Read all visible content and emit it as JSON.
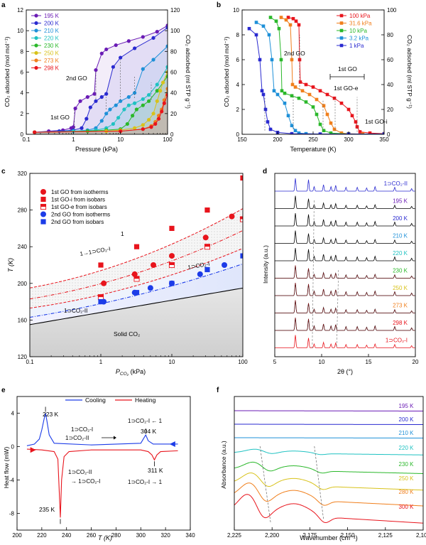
{
  "chart_data": [
    {
      "panel": "a",
      "type": "line",
      "xscale": "log",
      "xlim": [
        0.1,
        100
      ],
      "ylim": [
        0,
        12
      ],
      "y2lim": [
        0,
        120
      ],
      "xticks": [
        0.1,
        1,
        10,
        100
      ],
      "xticklabels": [
        "0.1",
        "1",
        "10",
        "100"
      ],
      "yticks": [
        0,
        2,
        4,
        6,
        8,
        10,
        12
      ],
      "y2ticks": [
        0,
        20,
        40,
        60,
        80,
        100,
        120
      ],
      "xlabel": "Pressure (kPa)",
      "ylabel": "CO₂ adsorbed (mol mol⁻¹)",
      "y2label": "CO₂ adsorbed (ml STP g⁻¹)",
      "legend_position": "top-left",
      "annotations": [
        "1st GO",
        "2nd GO"
      ],
      "series": [
        {
          "name": "195 K",
          "color": "#6a1bb5",
          "x": [
            0.15,
            0.3,
            0.6,
            0.9,
            1.0,
            1.1,
            1.4,
            2,
            2.8,
            3,
            4,
            5,
            8,
            15,
            30,
            60,
            100
          ],
          "y": [
            0.2,
            0.3,
            0.4,
            0.6,
            0.7,
            2.5,
            3.2,
            3.6,
            3.9,
            6.2,
            7.8,
            8.2,
            8.6,
            9.0,
            9.4,
            9.9,
            10.5
          ]
        },
        {
          "name": "200 K",
          "color": "#2a2ad0",
          "x": [
            0.15,
            0.5,
            1,
            1.5,
            1.9,
            2.3,
            3,
            4,
            5,
            7,
            10,
            20,
            50,
            100
          ],
          "y": [
            0.2,
            0.3,
            0.4,
            0.6,
            1.5,
            2.6,
            3.2,
            3.6,
            3.9,
            6.5,
            7.4,
            8.3,
            9.3,
            10.3
          ]
        },
        {
          "name": "210 K",
          "color": "#1e90d8",
          "x": [
            0.15,
            1,
            2,
            3,
            4,
            5,
            6,
            8,
            10,
            15,
            20,
            30,
            50,
            100
          ],
          "y": [
            0.2,
            0.3,
            0.4,
            0.6,
            1.3,
            2.0,
            2.4,
            2.8,
            3.2,
            3.6,
            4.0,
            6.3,
            7.2,
            8.5
          ]
        },
        {
          "name": "220 K",
          "color": "#1fc2c2",
          "x": [
            0.15,
            1,
            3,
            5,
            7,
            9,
            12,
            15,
            20,
            30,
            40,
            60,
            100
          ],
          "y": [
            0.2,
            0.3,
            0.4,
            0.6,
            1.0,
            1.6,
            2.4,
            2.8,
            3.0,
            3.4,
            3.8,
            4.8,
            6.5
          ]
        },
        {
          "name": "230 K",
          "color": "#2ab82a",
          "x": [
            0.15,
            2,
            5,
            10,
            14,
            18,
            22,
            30,
            40,
            60,
            100
          ],
          "y": [
            0.2,
            0.3,
            0.4,
            0.5,
            1.0,
            1.8,
            2.4,
            2.8,
            3.2,
            4.2,
            5.6
          ]
        },
        {
          "name": "250 K",
          "color": "#d8c21a",
          "x": [
            0.15,
            5,
            10,
            20,
            30,
            40,
            50,
            60,
            70,
            80,
            100
          ],
          "y": [
            0.2,
            0.3,
            0.4,
            0.6,
            0.9,
            1.4,
            2.0,
            3.2,
            4.2,
            5.0,
            6.0
          ]
        },
        {
          "name": "273 K",
          "color": "#f07f1c",
          "x": [
            0.15,
            10,
            30,
            45,
            55,
            65,
            75,
            85,
            100
          ],
          "y": [
            0.2,
            0.3,
            0.5,
            0.8,
            1.2,
            1.8,
            2.4,
            3.3,
            4.4
          ]
        },
        {
          "name": "298 K",
          "color": "#e8141c",
          "x": [
            0.15,
            10,
            30,
            45,
            55,
            65,
            75,
            85,
            100
          ],
          "y": [
            0.2,
            0.3,
            0.5,
            0.7,
            1.0,
            1.5,
            2.2,
            3.0,
            3.8
          ]
        }
      ]
    },
    {
      "panel": "b",
      "type": "line",
      "xlim": [
        150,
        350
      ],
      "ylim": [
        0,
        10
      ],
      "y2lim": [
        0,
        100
      ],
      "xticks": [
        150,
        200,
        250,
        300,
        350
      ],
      "yticks": [
        0,
        2,
        4,
        6,
        8,
        10
      ],
      "y2ticks": [
        0,
        20,
        40,
        60,
        80,
        100
      ],
      "xlabel": "Temperature (K)",
      "ylabel": "CO₂ adsorbed (mol mol⁻¹)",
      "y2label": "CO₂ adsorbed (ml STP g⁻¹)",
      "legend_position": "top-right",
      "annotations": [
        "2nd GO",
        "1st GO",
        "1st GO-e",
        "1st GO-i"
      ],
      "series": [
        {
          "name": "100 kPa",
          "color": "#e8141c",
          "x": [
            215,
            222,
            226,
            230,
            231,
            232,
            240,
            250,
            260,
            270,
            280,
            290,
            300,
            305,
            310,
            312,
            316,
            330,
            350
          ],
          "y": [
            9.4,
            9.3,
            9.1,
            8.8,
            6.0,
            4.2,
            4.0,
            3.8,
            3.5,
            3.2,
            2.9,
            2.5,
            2.0,
            1.5,
            1.0,
            0.6,
            0.2,
            0.1,
            0.05
          ]
        },
        {
          "name": "31.6 kPa",
          "color": "#f07f1c",
          "x": [
            205,
            212,
            218,
            220,
            221,
            225,
            235,
            245,
            255,
            265,
            270,
            275,
            280,
            290,
            300,
            320,
            350
          ],
          "y": [
            9.4,
            9.2,
            8.8,
            6.0,
            4.0,
            3.8,
            3.5,
            3.2,
            2.8,
            2.3,
            1.6,
            0.9,
            0.4,
            0.1,
            0.05,
            0.02,
            0.02
          ]
        },
        {
          "name": "10 kPa",
          "color": "#2ab82a",
          "x": [
            190,
            198,
            202,
            205,
            206,
            210,
            220,
            230,
            240,
            250,
            255,
            260,
            265,
            275,
            300,
            350
          ],
          "y": [
            9.4,
            9.1,
            8.5,
            6.0,
            3.5,
            3.3,
            3.1,
            2.9,
            2.6,
            2.2,
            1.6,
            0.8,
            0.3,
            0.1,
            0.03,
            0.02
          ]
        },
        {
          "name": "3.2 kPa",
          "color": "#1e90d8",
          "x": [
            170,
            180,
            188,
            192,
            195,
            200,
            210,
            215,
            220,
            225,
            230,
            240,
            260,
            300,
            350
          ],
          "y": [
            9.0,
            8.7,
            8.0,
            6.0,
            3.5,
            3.2,
            2.5,
            1.5,
            0.7,
            0.3,
            0.1,
            0.05,
            0.02,
            0.02,
            0.02
          ]
        },
        {
          "name": "1 kPa",
          "color": "#2a2ad0",
          "x": [
            160,
            170,
            175,
            178,
            180,
            183,
            186,
            190,
            200,
            220,
            260,
            300,
            350
          ],
          "y": [
            8.5,
            8.0,
            6.0,
            3.5,
            3.2,
            2.0,
            1.0,
            0.4,
            0.15,
            0.05,
            0.02,
            0.02,
            0.02
          ]
        }
      ]
    },
    {
      "panel": "c",
      "type": "scatter",
      "xscale": "log",
      "xlim": [
        0.1,
        100
      ],
      "ylim": [
        120,
        320
      ],
      "xticks": [
        0.1,
        1,
        10,
        100
      ],
      "xticklabels": [
        "0.1",
        "1",
        "10",
        "100"
      ],
      "yticks": [
        120,
        160,
        200,
        240,
        280,
        320
      ],
      "xlabel": "P",
      "xlabel_sub": "CO₂",
      "xlabel_unit": " (kPa)",
      "ylabel": "T (K)",
      "legend_position": "top-left",
      "regions": [
        "1",
        "1→1⊃CO₂-I",
        "1⊃CO₂-I",
        "1⊃CO₂-II",
        "Solid CO₂"
      ],
      "series": [
        {
          "name": "1st GO from isotherms",
          "marker": "circle",
          "color": "#e8141c",
          "x": [
            1.1,
            3.0,
            5.5,
            10,
            30,
            70
          ],
          "y": [
            200,
            210,
            220,
            230,
            250,
            273
          ]
        },
        {
          "name": "1st GO-i from isobars",
          "marker": "square",
          "color": "#e8141c",
          "x": [
            1,
            3.2,
            10,
            31.6,
            100
          ],
          "y": [
            220,
            240,
            260,
            280,
            315
          ]
        },
        {
          "name": "1st GO-e from isobars",
          "marker": "half-square",
          "color": "#e8141c",
          "x": [
            1,
            3.2,
            10,
            31.6,
            100
          ],
          "y": [
            185,
            205,
            220,
            240,
            270
          ]
        },
        {
          "name": "2nd GO from isotherms",
          "marker": "circle",
          "color": "#1c3ce8",
          "x": [
            1.1,
            3.0,
            5.0,
            10,
            25,
            55
          ],
          "y": [
            180,
            190,
            195,
            200,
            210,
            220
          ]
        },
        {
          "name": "2nd GO from isobars",
          "marker": "square",
          "color": "#1c3ce8",
          "x": [
            1,
            3.2,
            10,
            31.6,
            100
          ],
          "y": [
            180,
            190,
            200,
            215,
            230
          ]
        }
      ]
    },
    {
      "panel": "d",
      "type": "line",
      "xlim": [
        5,
        20
      ],
      "xticks": [
        5,
        10,
        15,
        20
      ],
      "xlabel": "2θ (°)",
      "ylabel": "Intensity (a.u.)",
      "trace_labels": [
        {
          "name": "1⊃CO₂-II",
          "color": "#2a2ad0"
        },
        {
          "name": "195 K",
          "color": "#6a1bb5"
        },
        {
          "name": "200 K",
          "color": "#2a2ad0"
        },
        {
          "name": "210 K",
          "color": "#1e90d8"
        },
        {
          "name": "220 K",
          "color": "#1fc2c2"
        },
        {
          "name": "230 K",
          "color": "#2ab82a"
        },
        {
          "name": "250 K",
          "color": "#d8c21a"
        },
        {
          "name": "273 K",
          "color": "#f07f1c"
        },
        {
          "name": "298 K",
          "color": "#e8141c"
        },
        {
          "name": "1⊃CO₂-I",
          "color": "#e8141c"
        }
      ],
      "peak_positions": [
        7.2,
        8.6,
        9.2,
        10.2,
        11.0,
        11.5,
        12.6,
        13.8,
        14.8,
        15.7,
        17.8,
        19.6
      ]
    },
    {
      "panel": "e",
      "type": "line",
      "xlim": [
        200,
        340
      ],
      "ylim": [
        -10,
        6
      ],
      "xticks": [
        200,
        220,
        240,
        260,
        280,
        300,
        320,
        340
      ],
      "yticks": [
        -8,
        -4,
        0,
        4
      ],
      "xlabel": "T (K)",
      "ylabel": "Heat flow (mW)",
      "legend_position": "top",
      "annotations": [
        "223 K",
        "235 K",
        "304 K",
        "311 K",
        "1⊃CO₂-I",
        "1⊃CO₂-II",
        "1⊃CO₂-I ← 1",
        "1⊃CO₂-II",
        "→ 1⊃CO₂-I",
        "1⊃CO₂-I → 1"
      ],
      "series": [
        {
          "name": "Cooling",
          "color": "#1c3ce8",
          "x": [
            208,
            214,
            218,
            220,
            222,
            223,
            224,
            226,
            230,
            260,
            300,
            302,
            304,
            306,
            310,
            320,
            330
          ],
          "y": [
            0.1,
            0.3,
            0.9,
            2.0,
            3.4,
            4.0,
            3.2,
            1.4,
            0.4,
            0.2,
            0.4,
            0.9,
            1.4,
            0.7,
            0.3,
            0.3,
            0.3
          ]
        },
        {
          "name": "Heating",
          "color": "#e8141c",
          "x": [
            208,
            220,
            230,
            233,
            234,
            235,
            236,
            238,
            242,
            260,
            300,
            306,
            309,
            311,
            313,
            316,
            330
          ],
          "y": [
            -0.3,
            -0.4,
            -0.6,
            -1.5,
            -5.0,
            -8.5,
            -4.0,
            -1.2,
            -0.6,
            -0.4,
            -0.4,
            -0.6,
            -1.0,
            -1.6,
            -1.0,
            -0.6,
            -0.5
          ]
        }
      ]
    },
    {
      "panel": "f",
      "type": "line",
      "xlim": [
        2225,
        2100
      ],
      "xticks": [
        2225,
        2200,
        2175,
        2150,
        2125,
        2100
      ],
      "xticklabels": [
        "2,225",
        "2,200",
        "2,175",
        "2,150",
        "2,125",
        "2,100"
      ],
      "xlabel": "Wavenumber (cm⁻¹)",
      "ylabel": "Absorbance (a.u.)",
      "series": [
        {
          "name": "195 K",
          "color": "#6a1bb5"
        },
        {
          "name": "200 K",
          "color": "#2a2ad0"
        },
        {
          "name": "210 K",
          "color": "#1e90d8"
        },
        {
          "name": "220 K",
          "color": "#1fc2c2"
        },
        {
          "name": "230 K",
          "color": "#2ab82a"
        },
        {
          "name": "250 K",
          "color": "#d8c21a"
        },
        {
          "name": "280 K",
          "color": "#f07f1c"
        },
        {
          "name": "300 K",
          "color": "#e8141c"
        }
      ]
    }
  ]
}
